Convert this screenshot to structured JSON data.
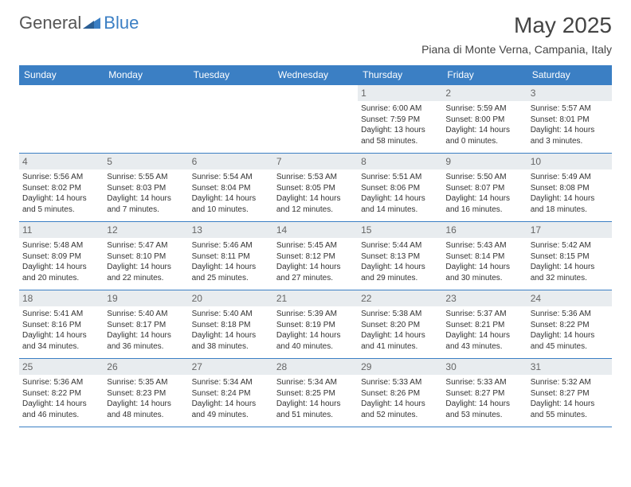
{
  "brand": {
    "general": "General",
    "blue": "Blue"
  },
  "title": "May 2025",
  "location": "Piana di Monte Verna, Campania, Italy",
  "colors": {
    "header_bg": "#3b7fc4",
    "header_text": "#ffffff",
    "daynum_bg": "#e8ecef",
    "border": "#3b7fc4",
    "brand_blue": "#3b7fc4",
    "text": "#333333"
  },
  "weekdays": [
    "Sunday",
    "Monday",
    "Tuesday",
    "Wednesday",
    "Thursday",
    "Friday",
    "Saturday"
  ],
  "weeks": [
    [
      {
        "n": null
      },
      {
        "n": null
      },
      {
        "n": null
      },
      {
        "n": null
      },
      {
        "n": 1,
        "sr": "6:00 AM",
        "ss": "7:59 PM",
        "dl": "13 hours and 58 minutes."
      },
      {
        "n": 2,
        "sr": "5:59 AM",
        "ss": "8:00 PM",
        "dl": "14 hours and 0 minutes."
      },
      {
        "n": 3,
        "sr": "5:57 AM",
        "ss": "8:01 PM",
        "dl": "14 hours and 3 minutes."
      }
    ],
    [
      {
        "n": 4,
        "sr": "5:56 AM",
        "ss": "8:02 PM",
        "dl": "14 hours and 5 minutes."
      },
      {
        "n": 5,
        "sr": "5:55 AM",
        "ss": "8:03 PM",
        "dl": "14 hours and 7 minutes."
      },
      {
        "n": 6,
        "sr": "5:54 AM",
        "ss": "8:04 PM",
        "dl": "14 hours and 10 minutes."
      },
      {
        "n": 7,
        "sr": "5:53 AM",
        "ss": "8:05 PM",
        "dl": "14 hours and 12 minutes."
      },
      {
        "n": 8,
        "sr": "5:51 AM",
        "ss": "8:06 PM",
        "dl": "14 hours and 14 minutes."
      },
      {
        "n": 9,
        "sr": "5:50 AM",
        "ss": "8:07 PM",
        "dl": "14 hours and 16 minutes."
      },
      {
        "n": 10,
        "sr": "5:49 AM",
        "ss": "8:08 PM",
        "dl": "14 hours and 18 minutes."
      }
    ],
    [
      {
        "n": 11,
        "sr": "5:48 AM",
        "ss": "8:09 PM",
        "dl": "14 hours and 20 minutes."
      },
      {
        "n": 12,
        "sr": "5:47 AM",
        "ss": "8:10 PM",
        "dl": "14 hours and 22 minutes."
      },
      {
        "n": 13,
        "sr": "5:46 AM",
        "ss": "8:11 PM",
        "dl": "14 hours and 25 minutes."
      },
      {
        "n": 14,
        "sr": "5:45 AM",
        "ss": "8:12 PM",
        "dl": "14 hours and 27 minutes."
      },
      {
        "n": 15,
        "sr": "5:44 AM",
        "ss": "8:13 PM",
        "dl": "14 hours and 29 minutes."
      },
      {
        "n": 16,
        "sr": "5:43 AM",
        "ss": "8:14 PM",
        "dl": "14 hours and 30 minutes."
      },
      {
        "n": 17,
        "sr": "5:42 AM",
        "ss": "8:15 PM",
        "dl": "14 hours and 32 minutes."
      }
    ],
    [
      {
        "n": 18,
        "sr": "5:41 AM",
        "ss": "8:16 PM",
        "dl": "14 hours and 34 minutes."
      },
      {
        "n": 19,
        "sr": "5:40 AM",
        "ss": "8:17 PM",
        "dl": "14 hours and 36 minutes."
      },
      {
        "n": 20,
        "sr": "5:40 AM",
        "ss": "8:18 PM",
        "dl": "14 hours and 38 minutes."
      },
      {
        "n": 21,
        "sr": "5:39 AM",
        "ss": "8:19 PM",
        "dl": "14 hours and 40 minutes."
      },
      {
        "n": 22,
        "sr": "5:38 AM",
        "ss": "8:20 PM",
        "dl": "14 hours and 41 minutes."
      },
      {
        "n": 23,
        "sr": "5:37 AM",
        "ss": "8:21 PM",
        "dl": "14 hours and 43 minutes."
      },
      {
        "n": 24,
        "sr": "5:36 AM",
        "ss": "8:22 PM",
        "dl": "14 hours and 45 minutes."
      }
    ],
    [
      {
        "n": 25,
        "sr": "5:36 AM",
        "ss": "8:22 PM",
        "dl": "14 hours and 46 minutes."
      },
      {
        "n": 26,
        "sr": "5:35 AM",
        "ss": "8:23 PM",
        "dl": "14 hours and 48 minutes."
      },
      {
        "n": 27,
        "sr": "5:34 AM",
        "ss": "8:24 PM",
        "dl": "14 hours and 49 minutes."
      },
      {
        "n": 28,
        "sr": "5:34 AM",
        "ss": "8:25 PM",
        "dl": "14 hours and 51 minutes."
      },
      {
        "n": 29,
        "sr": "5:33 AM",
        "ss": "8:26 PM",
        "dl": "14 hours and 52 minutes."
      },
      {
        "n": 30,
        "sr": "5:33 AM",
        "ss": "8:27 PM",
        "dl": "14 hours and 53 minutes."
      },
      {
        "n": 31,
        "sr": "5:32 AM",
        "ss": "8:27 PM",
        "dl": "14 hours and 55 minutes."
      }
    ]
  ],
  "labels": {
    "sunrise": "Sunrise:",
    "sunset": "Sunset:",
    "daylight": "Daylight:"
  }
}
